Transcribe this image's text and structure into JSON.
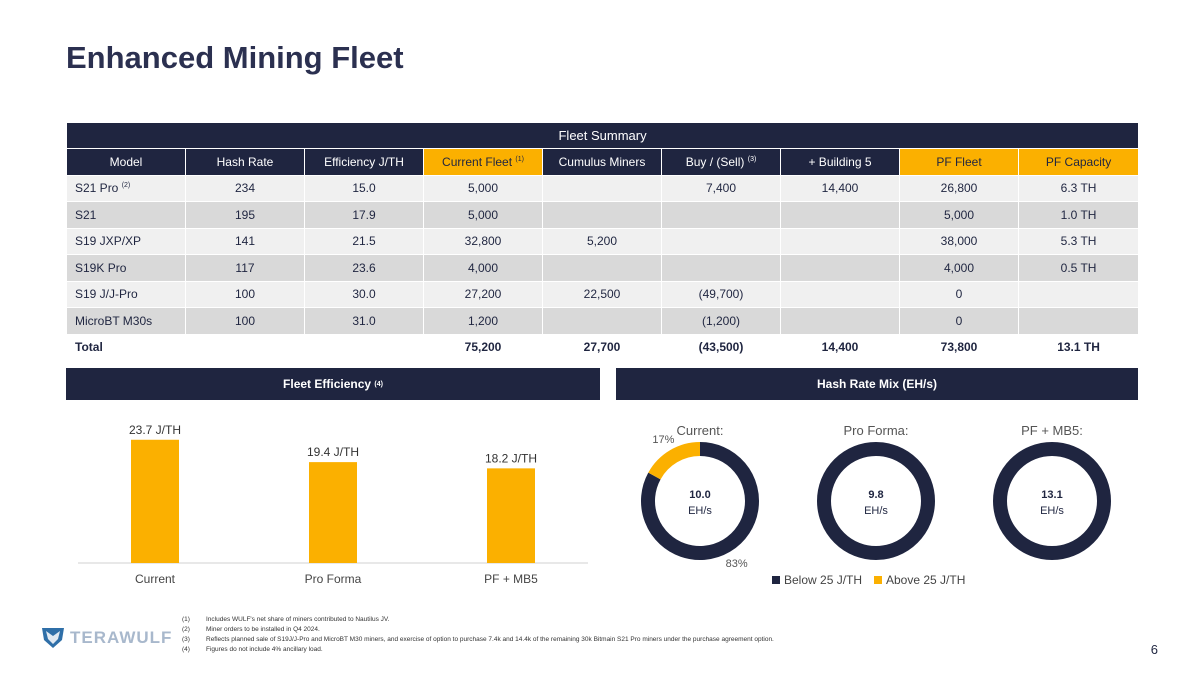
{
  "title": "Enhanced Mining Fleet",
  "table": {
    "caption": "Fleet Summary",
    "headers": [
      {
        "text": "Model",
        "sup": "",
        "hl": false
      },
      {
        "text": "Hash Rate",
        "sup": "",
        "hl": false
      },
      {
        "text": "Efficiency J/TH",
        "sup": "",
        "hl": false
      },
      {
        "text": "Current Fleet",
        "sup": "(1)",
        "hl": true
      },
      {
        "text": "Cumulus Miners",
        "sup": "",
        "hl": false
      },
      {
        "text": "Buy / (Sell)",
        "sup": "(3)",
        "hl": false
      },
      {
        "text": "+ Building 5",
        "sup": "",
        "hl": false
      },
      {
        "text": "PF Fleet",
        "sup": "",
        "hl": true
      },
      {
        "text": "PF Capacity",
        "sup": "",
        "hl": true
      }
    ],
    "rows": [
      {
        "model": "S21 Pro",
        "sup": "(2)",
        "cells": [
          "234",
          "15.0",
          "5,000",
          "",
          "7,400",
          "14,400",
          "26,800",
          "6.3 TH"
        ]
      },
      {
        "model": "S21",
        "sup": "",
        "cells": [
          "195",
          "17.9",
          "5,000",
          "",
          "",
          "",
          "5,000",
          "1.0 TH"
        ]
      },
      {
        "model": "S19 JXP/XP",
        "sup": "",
        "cells": [
          "141",
          "21.5",
          "32,800",
          "5,200",
          "",
          "",
          "38,000",
          "5.3 TH"
        ]
      },
      {
        "model": "S19K Pro",
        "sup": "",
        "cells": [
          "117",
          "23.6",
          "4,000",
          "",
          "",
          "",
          "4,000",
          "0.5 TH"
        ]
      },
      {
        "model": "S19 J/J-Pro",
        "sup": "",
        "cells": [
          "100",
          "30.0",
          "27,200",
          "22,500",
          "(49,700)",
          "",
          "0",
          ""
        ]
      },
      {
        "model": "MicroBT M30s",
        "sup": "",
        "cells": [
          "100",
          "31.0",
          "1,200",
          "",
          "(1,200)",
          "",
          "0",
          ""
        ]
      }
    ],
    "total": {
      "model": "Total",
      "cells": [
        "",
        "",
        "75,200",
        "27,700",
        "(43,500)",
        "14,400",
        "73,800",
        "13.1 TH"
      ]
    }
  },
  "efficiency_header": {
    "text": "Fleet Efficiency",
    "sup": "(4)"
  },
  "hashmix_header": {
    "text": "Hash Rate Mix (EH/s)"
  },
  "chart_data": [
    {
      "type": "bar",
      "title": "Fleet Efficiency",
      "categories": [
        "Current",
        "Pro Forma",
        "PF + MB5"
      ],
      "values": [
        23.7,
        19.4,
        18.2
      ],
      "labels": [
        "23.7 J/TH",
        "19.4 J/TH",
        "18.2 J/TH"
      ],
      "ylim": [
        0,
        25
      ],
      "color": "#fbb000"
    },
    {
      "type": "pie",
      "title": "Hash Rate Mix (EH/s)",
      "legend": [
        "Below 25 J/TH",
        "Above 25 J/TH"
      ],
      "colors": [
        "#1f2540",
        "#fbb000"
      ],
      "charts": [
        {
          "title": "Current:",
          "center": [
            "10.0",
            "EH/s"
          ],
          "values": [
            83,
            17
          ],
          "labels": [
            "83%",
            "17%"
          ]
        },
        {
          "title": "Pro Forma:",
          "center": [
            "9.8",
            "EH/s"
          ],
          "values": [
            100,
            0
          ],
          "labels": [
            "",
            ""
          ]
        },
        {
          "title": "PF + MB5:",
          "center": [
            "13.1",
            "EH/s"
          ],
          "values": [
            100,
            0
          ],
          "labels": [
            "",
            ""
          ]
        }
      ]
    }
  ],
  "footnotes": [
    {
      "num": "(1)",
      "text": "Includes WULF's net share of miners contributed to Nautilus JV."
    },
    {
      "num": "(2)",
      "text": "Miner orders to be installed in Q4 2024."
    },
    {
      "num": "(3)",
      "text": "Reflects planned sale of S19J/J-Pro and MicroBT M30 miners, and exercise of option to purchase 7.4k and 14.4k of the remaining 30k Bitmain S21 Pro miners under the purchase agreement option."
    },
    {
      "num": "(4)",
      "text": "Figures do not include 4% ancillary load."
    }
  ],
  "logo_text": "TERAWULF",
  "page_number": "6"
}
